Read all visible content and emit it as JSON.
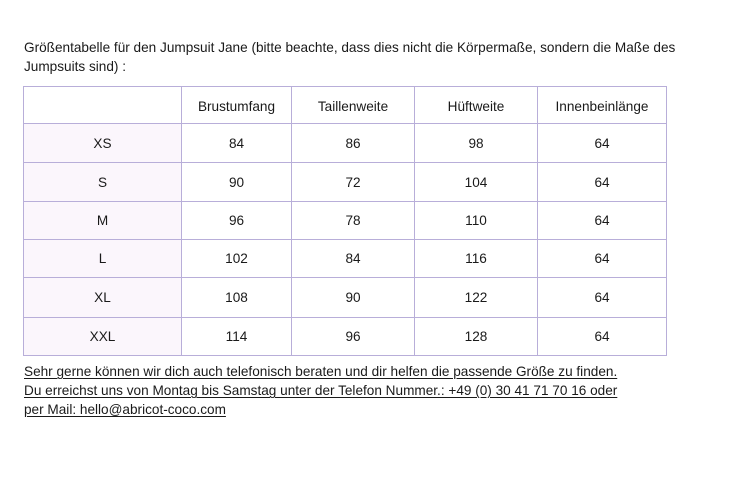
{
  "intro": "Größentabelle für den Jumpsuit Jane (bitte beachte, dass dies nicht die Körpermaße, sondern die Maße des Jumpsuits sind) :",
  "table": {
    "headers": [
      "",
      "Brustumfang",
      "Taillenweite",
      "Hüftweite",
      "Innenbeinlänge"
    ],
    "rows": [
      [
        "XS",
        "84",
        "86",
        "98",
        "64"
      ],
      [
        "S",
        "90",
        "72",
        "104",
        "64"
      ],
      [
        "M",
        "96",
        "78",
        "110",
        "64"
      ],
      [
        "L",
        "102",
        "84",
        "116",
        "64"
      ],
      [
        "XL",
        "108",
        "90",
        "122",
        "64"
      ],
      [
        "XXL",
        "114",
        "96",
        "128",
        "64"
      ]
    ]
  },
  "footer": {
    "line1": "Sehr gerne können wir dich auch telefonisch beraten und dir helfen die passende Größe zu finden.",
    "line2": "Du erreichst uns von Montag bis Samstag unter der Telefon Nummer.: +49 (0) 30 41 71 70 16 oder",
    "line3": "per Mail: hello@abricot-coco.com"
  },
  "colors": {
    "table_border": "#b8aed9",
    "size_cell_bg": "#fbf6fc",
    "text": "#1a1a1a"
  }
}
